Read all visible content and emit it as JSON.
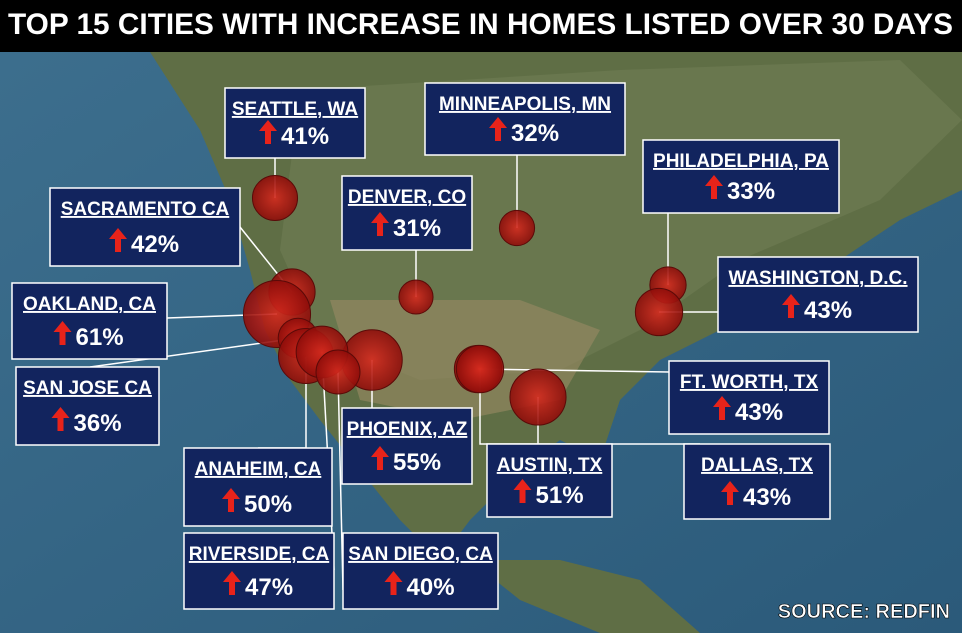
{
  "title": "TOP 15 CITIES WITH INCREASE IN HOMES LISTED OVER 30 DAYS",
  "cities": [
    {
      "name": "SEATTLE, WA",
      "value": 41,
      "label": "41%"
    },
    {
      "name": "MINNEAPOLIS, MN",
      "value": 32,
      "label": "32%"
    },
    {
      "name": "PHILADELPHIA, PA",
      "value": 33,
      "label": "33%"
    },
    {
      "name": "DENVER, CO",
      "value": 31,
      "label": "31%"
    },
    {
      "name": "SACRAMENTO CA",
      "value": 42,
      "label": "42%"
    },
    {
      "name": "WASHINGTON, D.C.",
      "value": 43,
      "label": "43%"
    },
    {
      "name": "OAKLAND, CA",
      "value": 61,
      "label": "61%"
    },
    {
      "name": "SAN JOSE CA",
      "value": 36,
      "label": "36%"
    },
    {
      "name": "FT. WORTH, TX",
      "value": 43,
      "label": "43%"
    },
    {
      "name": "PHOENIX, AZ",
      "value": 55,
      "label": "55%"
    },
    {
      "name": "AUSTIN, TX",
      "value": 51,
      "label": "51%"
    },
    {
      "name": "DALLAS, TX",
      "value": 43,
      "label": "43%"
    },
    {
      "name": "ANAHEIM, CA",
      "value": 50,
      "label": "50%"
    },
    {
      "name": "RIVERSIDE, CA",
      "value": 47,
      "label": "47%"
    },
    {
      "name": "SAN DIEGO, CA",
      "value": 40,
      "label": "40%"
    }
  ],
  "source": "SOURCE: REDFIN"
}
